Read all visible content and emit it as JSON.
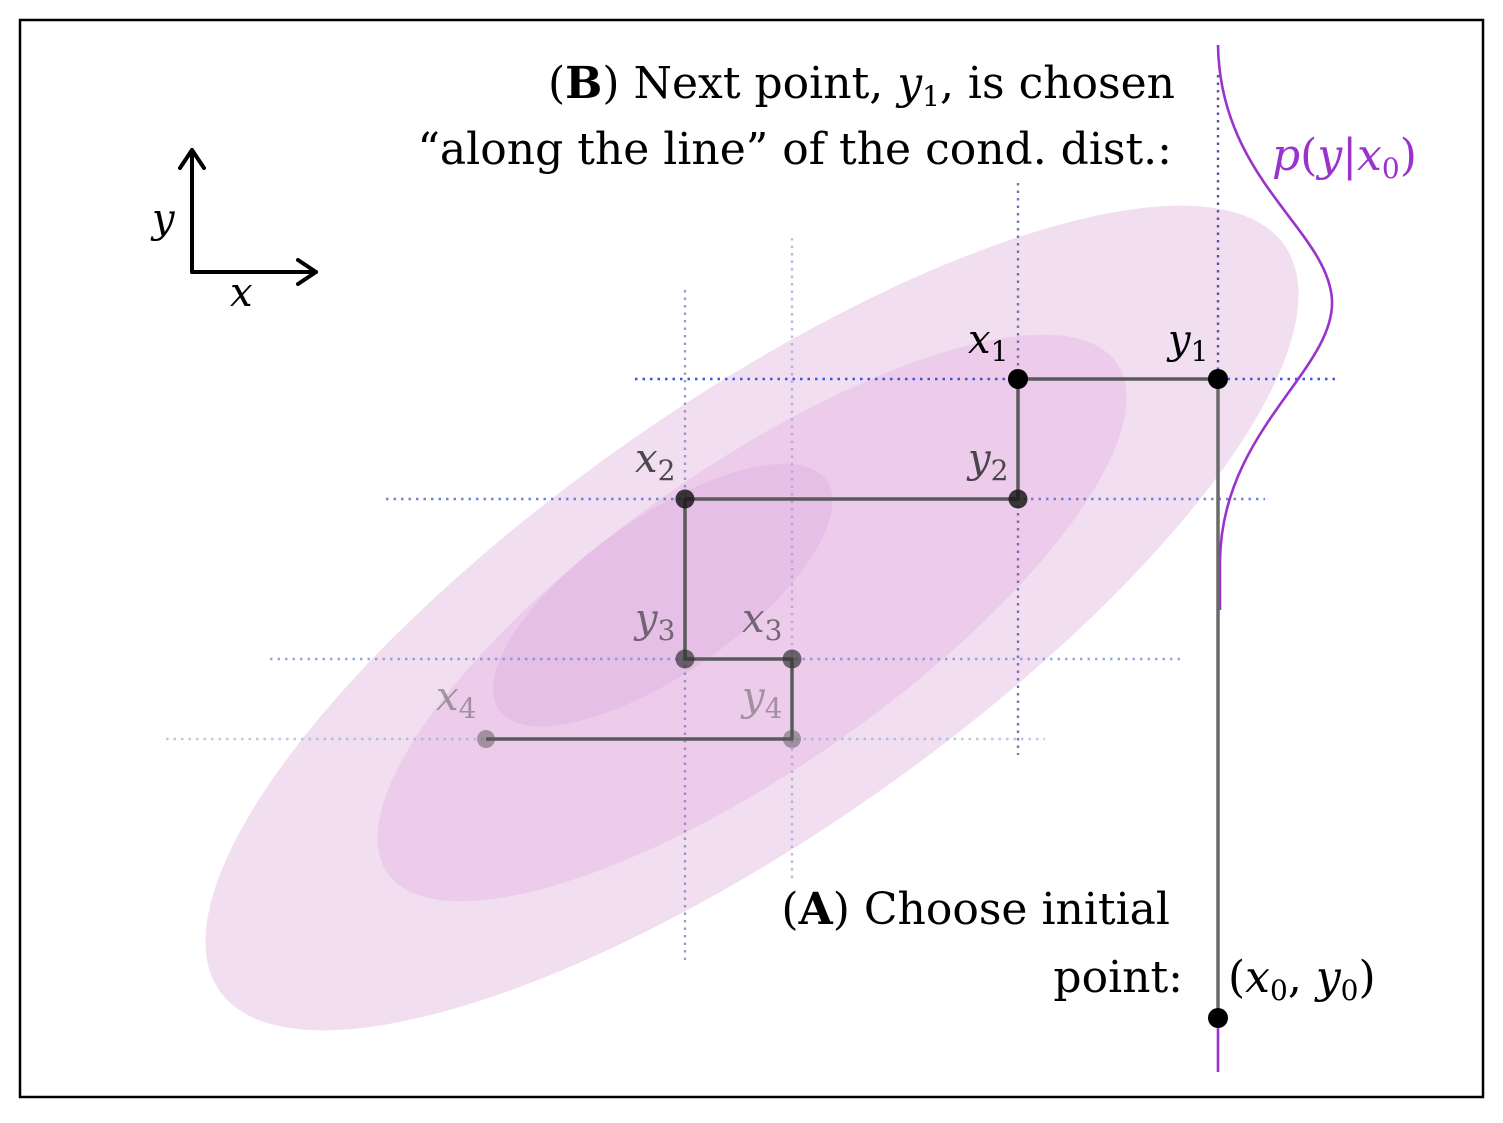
{
  "colors": {
    "ellipse_outer": "#f1dff1",
    "ellipse_mid": "#ecccea",
    "ellipse_inner": "#e6bfe6",
    "path_line": "#555555",
    "point_fill": "#000000",
    "purple_curve": "#9933cc",
    "blue_dotted": "#4a5fd8",
    "purple_dotted": "#7d6db0",
    "frame": "#000000"
  },
  "axes_icon": {
    "x_label": "x",
    "y_label": "y"
  },
  "caption_b": {
    "open": "(",
    "letter": "B",
    "close": ") Next point,",
    "var": "y",
    "var_sub": "1",
    "rest": ", is chosen",
    "line2": "“along the line” of the cond. dist.:"
  },
  "caption_a": {
    "open": "(",
    "letter": "A",
    "close": ") Choose initial",
    "line2": "point:"
  },
  "conditional_label": {
    "p": "p",
    "open": "(",
    "y": "y",
    "bar": "|",
    "x": "x",
    "x_sub": "0",
    "close": ")"
  },
  "initial_point_label": {
    "open": "(",
    "x": "x",
    "x_sub": "0",
    "comma": ", ",
    "y": "y",
    "y_sub": "0",
    "close": ")"
  },
  "points": [
    {
      "id": "x1",
      "letter": "x",
      "sub": "1",
      "opacity": 1.0
    },
    {
      "id": "y1",
      "letter": "y",
      "sub": "1",
      "opacity": 1.0
    },
    {
      "id": "x2",
      "letter": "x",
      "sub": "2",
      "opacity": 0.8
    },
    {
      "id": "y2",
      "letter": "y",
      "sub": "2",
      "opacity": 0.8
    },
    {
      "id": "x3",
      "letter": "x",
      "sub": "3",
      "opacity": 0.6
    },
    {
      "id": "y3",
      "letter": "y",
      "sub": "3",
      "opacity": 0.6
    },
    {
      "id": "x4",
      "letter": "x",
      "sub": "4",
      "opacity": 0.4
    },
    {
      "id": "y4",
      "letter": "y",
      "sub": "4",
      "opacity": 0.4
    }
  ]
}
